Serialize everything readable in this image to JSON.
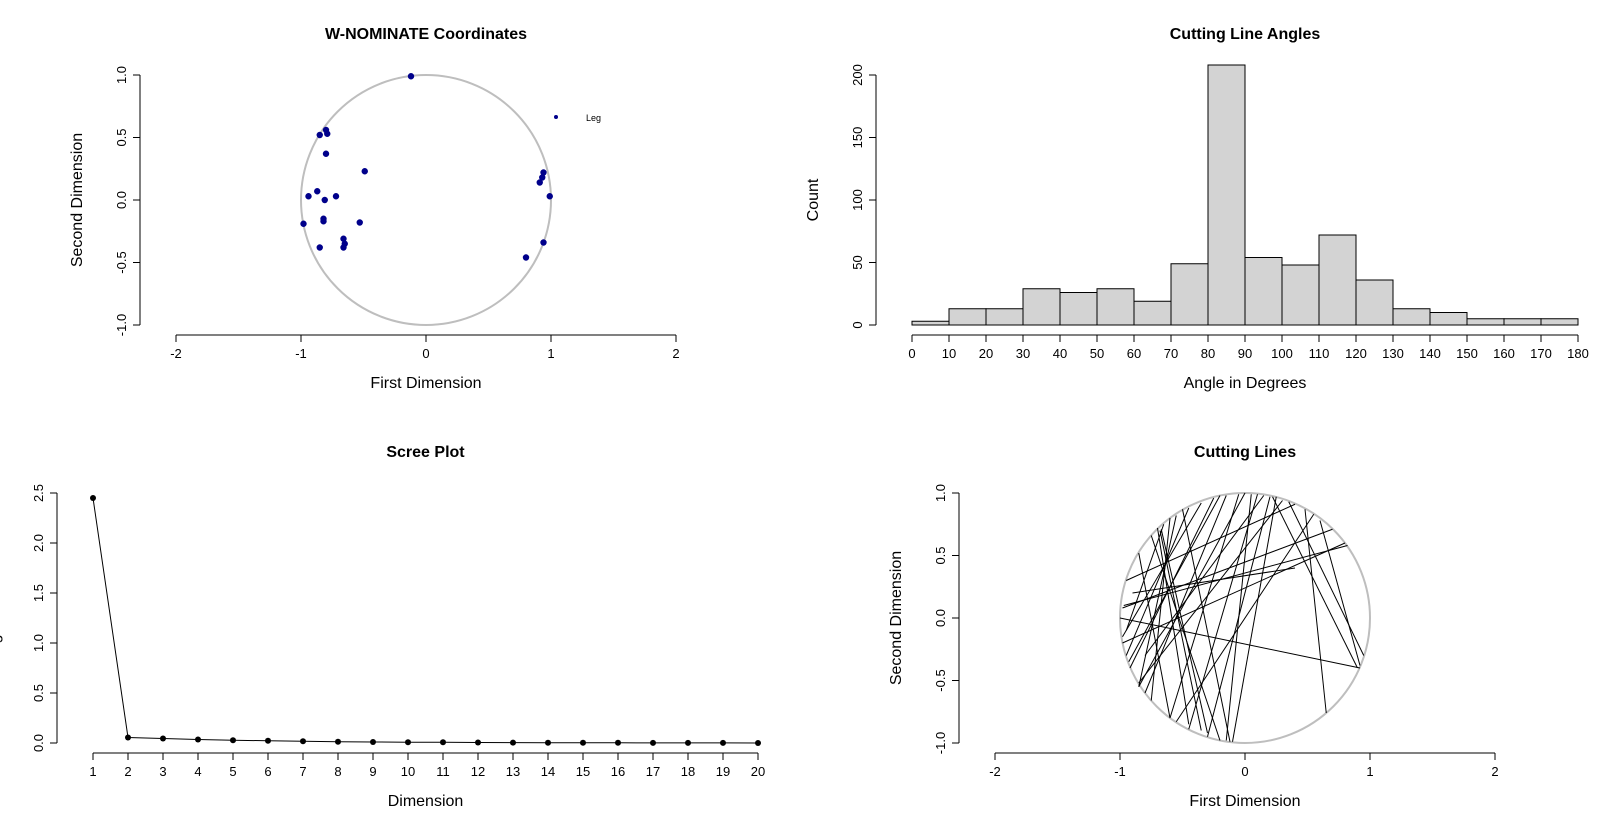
{
  "chart_data": [
    {
      "type": "scatter",
      "title": "W-NOMINATE Coordinates",
      "xlabel": "First Dimension",
      "ylabel": "Second Dimension",
      "xlim": [
        -2,
        2
      ],
      "ylim": [
        -1,
        1
      ],
      "xticks": [
        "-2",
        "-1",
        "0",
        "1",
        "2"
      ],
      "yticks": [
        "-1.0",
        "-0.5",
        "0.0",
        "0.5",
        "1.0"
      ],
      "unit_circle": true,
      "point_color": "#00008B",
      "circle_color": "#BEBEBE",
      "legend": {
        "label": "Leg",
        "position": "top-right"
      },
      "points": [
        {
          "x": -0.12,
          "y": 0.99
        },
        {
          "x": -0.8,
          "y": 0.56
        },
        {
          "x": -0.79,
          "y": 0.53
        },
        {
          "x": -0.85,
          "y": 0.52
        },
        {
          "x": -0.8,
          "y": 0.37
        },
        {
          "x": -0.49,
          "y": 0.23
        },
        {
          "x": -0.87,
          "y": 0.07
        },
        {
          "x": -0.94,
          "y": 0.03
        },
        {
          "x": -0.72,
          "y": 0.03
        },
        {
          "x": -0.81,
          "y": 0.0
        },
        {
          "x": -0.82,
          "y": -0.15
        },
        {
          "x": -0.82,
          "y": -0.17
        },
        {
          "x": -0.53,
          "y": -0.18
        },
        {
          "x": -0.98,
          "y": -0.19
        },
        {
          "x": -0.66,
          "y": -0.31
        },
        {
          "x": -0.65,
          "y": -0.35
        },
        {
          "x": -0.66,
          "y": -0.38
        },
        {
          "x": -0.85,
          "y": -0.38
        },
        {
          "x": 0.94,
          "y": 0.22
        },
        {
          "x": 0.93,
          "y": 0.18
        },
        {
          "x": 0.91,
          "y": 0.14
        },
        {
          "x": 0.99,
          "y": 0.03
        },
        {
          "x": 0.94,
          "y": -0.34
        },
        {
          "x": 0.8,
          "y": -0.46
        }
      ]
    },
    {
      "type": "bar",
      "title": "Cutting Line Angles",
      "xlabel": "Angle in Degrees",
      "ylabel": "Count",
      "xlim": [
        0,
        180
      ],
      "ylim": [
        0,
        200
      ],
      "xticks": [
        "0",
        "10",
        "20",
        "30",
        "40",
        "50",
        "60",
        "70",
        "80",
        "90",
        "100",
        "110",
        "120",
        "130",
        "140",
        "150",
        "160",
        "170",
        "180"
      ],
      "yticks": [
        "0",
        "50",
        "100",
        "150",
        "200"
      ],
      "bar_color": "#D3D3D3",
      "bins": [
        [
          0,
          10
        ],
        [
          10,
          20
        ],
        [
          20,
          30
        ],
        [
          30,
          40
        ],
        [
          40,
          50
        ],
        [
          50,
          60
        ],
        [
          60,
          70
        ],
        [
          70,
          80
        ],
        [
          80,
          90
        ],
        [
          90,
          100
        ],
        [
          100,
          110
        ],
        [
          110,
          120
        ],
        [
          120,
          130
        ],
        [
          130,
          140
        ],
        [
          140,
          150
        ],
        [
          150,
          160
        ],
        [
          160,
          170
        ],
        [
          170,
          180
        ]
      ],
      "values": [
        3,
        13,
        13,
        29,
        26,
        29,
        19,
        49,
        208,
        54,
        48,
        72,
        36,
        13,
        10,
        5,
        5,
        5
      ]
    },
    {
      "type": "line",
      "title": "Scree Plot",
      "xlabel": "Dimension",
      "ylabel": "Eigenvalue",
      "xlim": [
        1,
        20
      ],
      "ylim": [
        0,
        2.5
      ],
      "xticks": [
        "1",
        "2",
        "3",
        "4",
        "5",
        "6",
        "7",
        "8",
        "9",
        "10",
        "11",
        "12",
        "13",
        "14",
        "15",
        "16",
        "17",
        "18",
        "19",
        "20"
      ],
      "yticks": [
        "0.0",
        "0.5",
        "1.0",
        "1.5",
        "2.0",
        "2.5"
      ],
      "x": [
        1,
        2,
        3,
        4,
        5,
        6,
        7,
        8,
        9,
        10,
        11,
        12,
        13,
        14,
        15,
        16,
        17,
        18,
        19,
        20
      ],
      "values": [
        2.45,
        0.055,
        0.045,
        0.035,
        0.028,
        0.022,
        0.018,
        0.012,
        0.01,
        0.008,
        0.007,
        0.005,
        0.004,
        0.003,
        0.002,
        0.002,
        0.001,
        0.001,
        0.001,
        0.0
      ]
    },
    {
      "type": "line",
      "title": "Cutting Lines",
      "xlabel": "First Dimension",
      "ylabel": "Second Dimension",
      "xlim": [
        -2,
        2
      ],
      "ylim": [
        -1,
        1
      ],
      "xticks": [
        "-2",
        "-1",
        "0",
        "1",
        "2"
      ],
      "yticks": [
        "-1.0",
        "-0.5",
        "0.0",
        "0.5",
        "1.0"
      ],
      "unit_circle": true,
      "circle_color": "#BEBEBE",
      "segments": [
        [
          [
            -0.7,
            0.72
          ],
          [
            -0.45,
            -0.85
          ]
        ],
        [
          [
            -0.68,
            0.7
          ],
          [
            -0.35,
            -0.9
          ]
        ],
        [
          [
            -0.67,
            0.71
          ],
          [
            -0.3,
            -0.92
          ]
        ],
        [
          [
            -0.55,
            0.82
          ],
          [
            -0.85,
            -0.55
          ]
        ],
        [
          [
            -0.45,
            0.88
          ],
          [
            -0.95,
            -0.3
          ]
        ],
        [
          [
            -0.35,
            0.92
          ],
          [
            -0.98,
            -0.15
          ]
        ],
        [
          [
            -0.25,
            0.96
          ],
          [
            -0.92,
            -0.4
          ]
        ],
        [
          [
            -0.15,
            0.98
          ],
          [
            -0.8,
            -0.6
          ]
        ],
        [
          [
            -0.05,
            0.99
          ],
          [
            -0.6,
            -0.8
          ]
        ],
        [
          [
            0.05,
            0.99
          ],
          [
            -0.15,
            -0.98
          ]
        ],
        [
          [
            0.2,
            0.97
          ],
          [
            -0.3,
            -0.95
          ]
        ],
        [
          [
            0.3,
            0.94
          ],
          [
            -0.85,
            -0.52
          ]
        ],
        [
          [
            0.22,
            0.97
          ],
          [
            0.9,
            -0.4
          ]
        ],
        [
          [
            0.4,
            0.91
          ],
          [
            -0.95,
            0.3
          ]
        ],
        [
          [
            0.48,
            0.87
          ],
          [
            0.65,
            -0.76
          ]
        ],
        [
          [
            0.55,
            0.83
          ],
          [
            -0.55,
            -0.83
          ]
        ],
        [
          [
            0.7,
            0.71
          ],
          [
            -0.98,
            0.08
          ]
        ],
        [
          [
            0.82,
            0.58
          ],
          [
            -0.97,
            0.1
          ]
        ],
        [
          [
            0.6,
            0.78
          ],
          [
            0.92,
            -0.38
          ]
        ],
        [
          [
            0.35,
            0.93
          ],
          [
            0.95,
            -0.3
          ]
        ],
        [
          [
            -1.0,
            0.0
          ],
          [
            0.92,
            -0.4
          ]
        ],
        [
          [
            -0.98,
            -0.2
          ],
          [
            0.8,
            0.6
          ]
        ],
        [
          [
            -0.93,
            -0.35
          ],
          [
            -0.2,
            0.98
          ]
        ],
        [
          [
            -0.85,
            -0.55
          ],
          [
            0.0,
            1.0
          ]
        ],
        [
          [
            -0.75,
            -0.66
          ],
          [
            -0.6,
            0.8
          ]
        ],
        [
          [
            -0.6,
            -0.8
          ],
          [
            -0.85,
            0.52
          ]
        ],
        [
          [
            -0.45,
            -0.89
          ],
          [
            0.1,
            0.99
          ]
        ],
        [
          [
            -0.2,
            -0.98
          ],
          [
            -0.75,
            0.66
          ]
        ],
        [
          [
            -0.1,
            -0.99
          ],
          [
            0.25,
            0.97
          ]
        ],
        [
          [
            -0.12,
            -0.99
          ],
          [
            -0.5,
            0.87
          ]
        ],
        [
          [
            -0.9,
            0.2
          ],
          [
            0.4,
            0.4
          ]
        ],
        [
          [
            -0.95,
            -0.1
          ],
          [
            -0.65,
            0.75
          ]
        ],
        [
          [
            -0.8,
            -0.3
          ],
          [
            0.15,
            0.98
          ]
        ]
      ]
    }
  ]
}
